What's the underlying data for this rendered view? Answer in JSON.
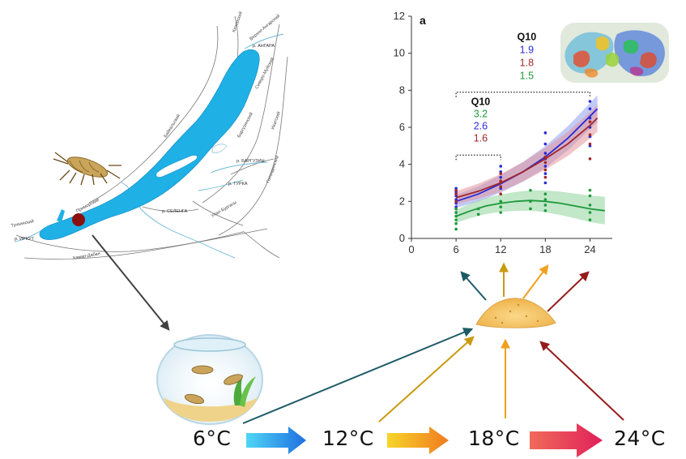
{
  "map": {
    "labels": {
      "angara": "р. АНГАРА",
      "barguzin": "р. БАРГУЗИН",
      "turka": "р. ТУРКА",
      "selenga": "р. СЕЛЕНГА",
      "irkut": "р. ИРКУТ",
      "baikalsky": "Байкальский",
      "primorsky": "Приморский",
      "khamar": "Хамар-Дабан",
      "barguzinsky": "Баргузинский",
      "ulan": "Улан-Бургасы",
      "kodar": "Кичерский",
      "verkh": "Верхне-Ангарский",
      "sev": "Северо-Муйский",
      "ikatsky": "Икатский",
      "golondinsky": "Голондинский",
      "tunkinsky": "Тункинский"
    },
    "location_marker_color": "#8b0f0f",
    "lake_color": "#1fb0e6"
  },
  "scene_icons": [
    "amphipod-icon",
    "fishbowl-icon",
    "food-pile-icon",
    "protein-structure-icon"
  ],
  "temperatures": [
    "6°C",
    "12°C",
    "18°C",
    "24°C"
  ],
  "chart_data": {
    "type": "scatter",
    "panel_label": "a",
    "xlim": [
      0,
      27
    ],
    "ylim": [
      0,
      12
    ],
    "x_ticks": [
      0,
      6,
      12,
      18,
      24
    ],
    "y_ticks": [
      0,
      2,
      4,
      6,
      8,
      10,
      12
    ],
    "xlabel": "",
    "ylabel": "",
    "grid": false,
    "series": [
      {
        "color": "#2b2bd6",
        "band_color": "#8fa0ee",
        "fit": [
          [
            6,
            2.0
          ],
          [
            9,
            2.4
          ],
          [
            12,
            2.95
          ],
          [
            15,
            3.6
          ],
          [
            18,
            4.4
          ],
          [
            21,
            5.4
          ],
          [
            24,
            6.6
          ],
          [
            25,
            7.0
          ]
        ],
        "points": [
          [
            6,
            1.4
          ],
          [
            6,
            1.7
          ],
          [
            6,
            1.9
          ],
          [
            6,
            2.1
          ],
          [
            6,
            2.3
          ],
          [
            6,
            2.5
          ],
          [
            6,
            2.7
          ],
          [
            12,
            2.7
          ],
          [
            12,
            3.0
          ],
          [
            12,
            3.3
          ],
          [
            12,
            3.6
          ],
          [
            12,
            3.9
          ],
          [
            18,
            3.0
          ],
          [
            18,
            3.5
          ],
          [
            18,
            3.9
          ],
          [
            18,
            4.3
          ],
          [
            18,
            4.6
          ],
          [
            18,
            5.1
          ],
          [
            18,
            5.7
          ],
          [
            24,
            5.0
          ],
          [
            24,
            5.5
          ],
          [
            24,
            6.0
          ],
          [
            24,
            6.5
          ],
          [
            24,
            7.0
          ],
          [
            24,
            7.4
          ]
        ]
      },
      {
        "color": "#a0282a",
        "band_color": "#e3959c",
        "fit": [
          [
            6,
            2.2
          ],
          [
            9,
            2.55
          ],
          [
            12,
            3.0
          ],
          [
            15,
            3.6
          ],
          [
            18,
            4.3
          ],
          [
            21,
            5.1
          ],
          [
            24,
            6.1
          ],
          [
            25,
            6.5
          ]
        ],
        "points": [
          [
            6,
            1.6
          ],
          [
            6,
            2.0
          ],
          [
            6,
            2.4
          ],
          [
            6,
            2.6
          ],
          [
            12,
            2.4
          ],
          [
            12,
            2.8
          ],
          [
            12,
            3.1
          ],
          [
            12,
            3.5
          ],
          [
            18,
            3.3
          ],
          [
            18,
            3.7
          ],
          [
            18,
            4.1
          ],
          [
            18,
            4.4
          ],
          [
            24,
            4.3
          ],
          [
            24,
            5.1
          ],
          [
            24,
            5.6
          ],
          [
            24,
            6.3
          ]
        ]
      },
      {
        "color": "#1e9a3a",
        "band_color": "#8fd49d",
        "fit": [
          [
            6,
            1.2
          ],
          [
            8,
            1.5
          ],
          [
            10,
            1.75
          ],
          [
            12,
            1.9
          ],
          [
            14,
            2.0
          ],
          [
            16,
            2.05
          ],
          [
            18,
            2.0
          ],
          [
            20,
            1.9
          ],
          [
            22,
            1.75
          ],
          [
            24,
            1.6
          ],
          [
            26,
            1.5
          ]
        ],
        "points": [
          [
            6,
            0.5
          ],
          [
            6,
            0.8
          ],
          [
            6,
            1.0
          ],
          [
            6,
            1.2
          ],
          [
            6,
            1.4
          ],
          [
            6,
            1.6
          ],
          [
            9,
            1.3
          ],
          [
            9,
            1.6
          ],
          [
            12,
            1.4
          ],
          [
            12,
            1.7
          ],
          [
            12,
            2.0
          ],
          [
            16,
            1.6
          ],
          [
            16,
            2.0
          ],
          [
            16,
            2.6
          ],
          [
            18,
            1.5
          ],
          [
            18,
            1.8
          ],
          [
            18,
            2.1
          ],
          [
            18,
            2.4
          ],
          [
            24,
            1.0
          ],
          [
            24,
            1.4
          ],
          [
            24,
            1.8
          ],
          [
            24,
            2.3
          ],
          [
            24,
            2.6
          ]
        ]
      }
    ],
    "q10_upper": {
      "title": "Q10",
      "values": [
        {
          "text": "1.9",
          "color": "#2b2bd6"
        },
        {
          "text": "1.8",
          "color": "#a0282a"
        },
        {
          "text": "1.5",
          "color": "#1e9a3a"
        }
      ],
      "bracket": [
        6,
        24
      ]
    },
    "q10_lower": {
      "title": "Q10",
      "values": [
        {
          "text": "3.2",
          "color": "#1e9a3a"
        },
        {
          "text": "2.6",
          "color": "#2b2bd6"
        },
        {
          "text": "1.6",
          "color": "#a0282a"
        }
      ],
      "bracket": [
        6,
        12
      ]
    }
  },
  "colors": {
    "arrow_dark_teal": "#1d5a66",
    "arrow_gold": "#c99a12",
    "arrow_orange": "#f0a020",
    "arrow_dark_red": "#951c1c",
    "gradient_arrow_1": [
      "#4fd6f5",
      "#1f6fe0"
    ],
    "gradient_arrow_2": [
      "#f7d52a",
      "#f07a20"
    ],
    "gradient_arrow_3": [
      "#f06a5a",
      "#e0205a"
    ]
  }
}
